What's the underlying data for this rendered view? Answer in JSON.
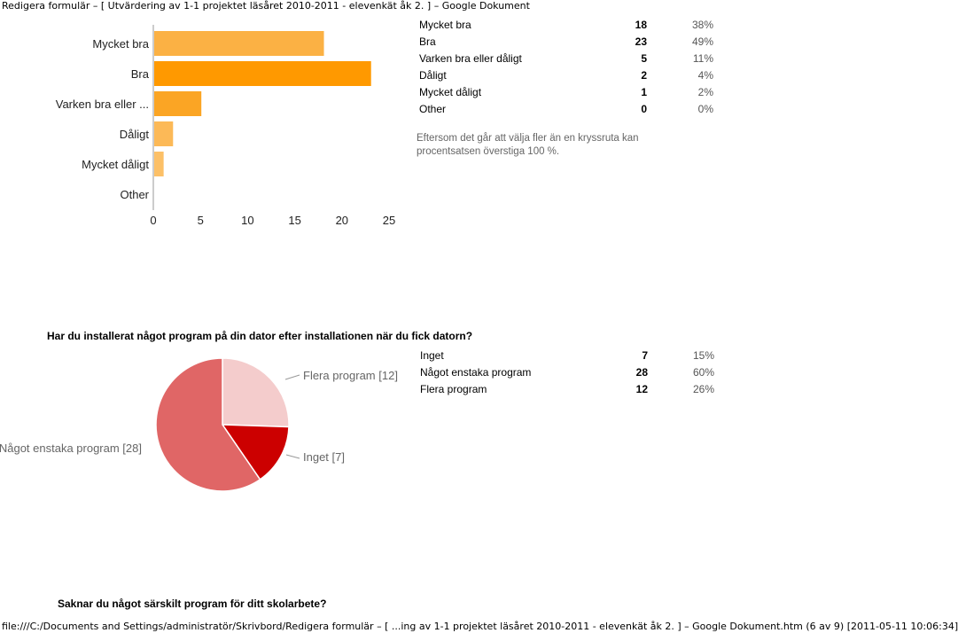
{
  "print_header": "Redigera formulär – [ Utvärdering av 1-1 projektet läsåret 2010-2011 - elevenkät åk 2. ] – Google Dokument",
  "print_footer": "file:///C:/Documents and Settings/administratör/Skrivbord/Redigera formulär – [ ...ing av 1-1 projektet läsåret 2010-2011 - elevenkät åk 2. ] – Google Dokument.htm (6 av 9) [2011-05-11 10:06:34]",
  "section1": {
    "rows": [
      {
        "label": "Mycket bra",
        "count": "18",
        "pct": "38%"
      },
      {
        "label": "Bra",
        "count": "23",
        "pct": "49%"
      },
      {
        "label": "Varken bra eller dåligt",
        "count": "5",
        "pct": "11%"
      },
      {
        "label": "Dåligt",
        "count": "2",
        "pct": "4%"
      },
      {
        "label": "Mycket dåligt",
        "count": "1",
        "pct": "2%"
      },
      {
        "label": "Other",
        "count": "0",
        "pct": "0%"
      }
    ],
    "note": "Eftersom det går att välja fler än en kryssruta kan procentsatsen överstiga 100 %."
  },
  "section2": {
    "question": "Har du installerat något program på din dator efter installationen när du fick datorn?",
    "rows": [
      {
        "label": "Inget",
        "count": "7",
        "pct": "15%"
      },
      {
        "label": "Något enstaka program",
        "count": "28",
        "pct": "60%"
      },
      {
        "label": "Flera program",
        "count": "12",
        "pct": "26%"
      }
    ]
  },
  "section3": {
    "question": "Saknar du något särskilt program för ditt skolarbete?"
  },
  "chart_data": [
    {
      "type": "bar",
      "orientation": "horizontal",
      "categories": [
        "Mycket bra",
        "Bra",
        "Varken bra eller ...",
        "Dåligt",
        "Mycket dåligt",
        "Other"
      ],
      "values": [
        18,
        23,
        5,
        2,
        1,
        0
      ],
      "xlim": [
        0,
        25
      ],
      "xticks": [
        "0",
        "5",
        "10",
        "15",
        "20",
        "25"
      ],
      "colors": [
        "#fbb144",
        "#ff9900",
        "#fba524",
        "#fcb957",
        "#fcc067",
        "#fcc067"
      ]
    },
    {
      "type": "pie",
      "labels": [
        "Inget [7]",
        "Något enstaka program [28]",
        "Flera program [12]"
      ],
      "values": [
        7,
        28,
        12
      ],
      "colors": [
        "#cc0000",
        "#e06666",
        "#f4cccc"
      ]
    }
  ]
}
